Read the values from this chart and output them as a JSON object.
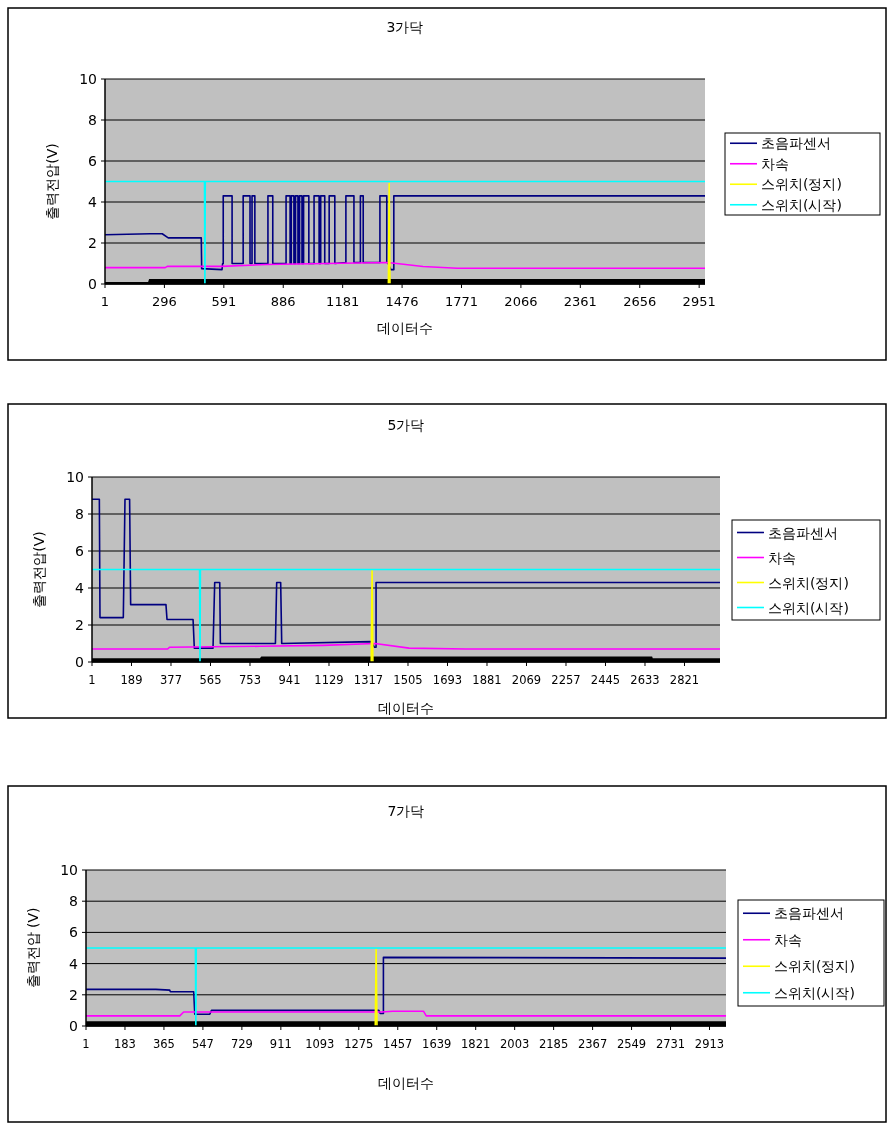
{
  "chart_data": [
    {
      "type": "line",
      "title": "3가닥",
      "xlabel": "데이터수",
      "ylabel": "출력전압(V)",
      "xlim": [
        1,
        2980
      ],
      "ylim": [
        0,
        10
      ],
      "xticks": [
        1,
        296,
        591,
        886,
        1181,
        1476,
        1771,
        2066,
        2361,
        2656,
        2951
      ],
      "yticks": [
        0,
        2,
        4,
        6,
        8,
        10
      ],
      "grid": "y",
      "legend": "right",
      "series": [
        {
          "type": "area",
          "color": "#000000",
          "x": [
            1,
            215,
            220,
            2980
          ],
          "values": [
            0.1,
            0.1,
            0.25,
            0.25
          ]
        },
        {
          "name": "초음파센서",
          "color": "#000080",
          "x": [
            1,
            225,
            285,
            315,
            479,
            481,
            582,
            585,
            588,
            588,
            632,
            632,
            687,
            687,
            721,
            721,
            731,
            731,
            745,
            745,
            810,
            810,
            834,
            834,
            900,
            900,
            920,
            920,
            926,
            926,
            939,
            939,
            947,
            947,
            959,
            959,
            967,
            967,
            979,
            979,
            987,
            987,
            1013,
            1013,
            1039,
            1039,
            1064,
            1064,
            1072,
            1072,
            1092,
            1092,
            1114,
            1114,
            1142,
            1142,
            1197,
            1197,
            1237,
            1237,
            1269,
            1269,
            1283,
            1283,
            1366,
            1366,
            1400,
            1400,
            1405,
            1420,
            1435,
            1435,
            2980
          ],
          "values": [
            2.4,
            2.45,
            2.45,
            2.25,
            2.25,
            0.75,
            0.7,
            1.0,
            1.0,
            4.3,
            4.3,
            1.0,
            1.0,
            4.3,
            4.3,
            1.0,
            1.0,
            4.3,
            4.3,
            1.0,
            1.0,
            4.3,
            4.3,
            1.0,
            1.0,
            4.3,
            4.3,
            1.0,
            1.0,
            4.3,
            4.3,
            1.0,
            1.0,
            4.3,
            4.3,
            1.0,
            1.0,
            4.3,
            4.3,
            1.0,
            1.0,
            4.3,
            4.3,
            1.0,
            1.0,
            4.3,
            4.3,
            1.0,
            1.0,
            4.3,
            4.3,
            1.0,
            1.0,
            4.3,
            4.3,
            1.0,
            1.05,
            4.3,
            4.3,
            1.05,
            1.05,
            4.3,
            4.3,
            1.05,
            1.05,
            4.3,
            4.3,
            1.05,
            1.05,
            0.7,
            0.7,
            4.3,
            4.3
          ]
        },
        {
          "name": "차속",
          "color": "#ff00ff",
          "x": [
            1,
            300,
            310,
            580,
            800,
            1100,
            1400,
            1450,
            1580,
            1750,
            2980
          ],
          "values": [
            0.8,
            0.8,
            0.86,
            0.86,
            0.95,
            1.0,
            1.05,
            1.0,
            0.85,
            0.77,
            0.77
          ]
        },
        {
          "name": "스위치(정지)",
          "color": "#ffff00",
          "x": [
            1408,
            1412,
            1416
          ],
          "values": [
            0,
            4.9,
            0
          ]
        },
        {
          "name": "스위치(시작)",
          "color": "#00ffff",
          "x": [
            1,
            495,
            497,
            499,
            2980
          ],
          "values": [
            5,
            5,
            0,
            5,
            5
          ]
        }
      ]
    },
    {
      "type": "line",
      "title": "5가닥",
      "xlabel": "데이터수",
      "ylabel": "출력전압(V)",
      "xlim": [
        1,
        2990
      ],
      "ylim": [
        0,
        10
      ],
      "xticks": [
        1,
        189,
        377,
        565,
        753,
        941,
        1129,
        1317,
        1505,
        1693,
        1881,
        2069,
        2257,
        2445,
        2633,
        2821
      ],
      "yticks": [
        0,
        2,
        4,
        6,
        8,
        10
      ],
      "grid": "y",
      "legend": "right",
      "series": [
        {
          "type": "area",
          "color": "#000000",
          "x": [
            1,
            800,
            807,
            2667,
            2670,
            2990
          ],
          "values": [
            0.2,
            0.2,
            0.3,
            0.3,
            0.2,
            0.2
          ]
        },
        {
          "name": "초음파센서",
          "color": "#000080",
          "x": [
            1,
            36,
            39,
            150,
            158,
            180,
            185,
            353,
            358,
            482,
            488,
            577,
            585,
            609,
            612,
            874,
            880,
            899,
            904,
            1330,
            1345,
            1353,
            1353,
            2990
          ],
          "values": [
            8.8,
            8.8,
            2.4,
            2.4,
            8.8,
            8.8,
            3.1,
            3.1,
            2.3,
            2.3,
            0.75,
            0.75,
            4.3,
            4.3,
            1.0,
            1.0,
            4.3,
            4.3,
            1.0,
            1.1,
            0.8,
            0.8,
            4.3,
            4.3
          ]
        },
        {
          "name": "차속",
          "color": "#ff00ff",
          "x": [
            1,
            361,
            370,
            800,
            1100,
            1348,
            1510,
            1780,
            2990
          ],
          "values": [
            0.7,
            0.7,
            0.8,
            0.85,
            0.9,
            1.0,
            0.75,
            0.7,
            0.7
          ]
        },
        {
          "name": "스위치(정지)",
          "color": "#ffff00",
          "x": [
            1330,
            1334,
            1338
          ],
          "values": [
            0,
            5,
            0
          ]
        },
        {
          "name": "스위치(시작)",
          "color": "#00ffff",
          "x": [
            1,
            513,
            515,
            517,
            2990
          ],
          "values": [
            5,
            5,
            0,
            5,
            5
          ]
        }
      ]
    },
    {
      "type": "line",
      "title": "7가닥",
      "xlabel": "데이터수",
      "ylabel": "출력전압 (V)",
      "xlim": [
        1,
        2990
      ],
      "ylim": [
        0,
        10
      ],
      "xticks": [
        1,
        183,
        365,
        547,
        729,
        911,
        1093,
        1275,
        1457,
        1639,
        1821,
        2003,
        2185,
        2367,
        2549,
        2731,
        2913
      ],
      "yticks": [
        0,
        2,
        4,
        6,
        8,
        10
      ],
      "grid": "y",
      "legend": "right",
      "series": [
        {
          "type": "area",
          "color": "#000000",
          "x": [
            1,
            2990
          ],
          "values": [
            0.3,
            0.3
          ]
        },
        {
          "name": "초음파센서",
          "color": "#000080",
          "x": [
            1,
            327,
            392,
            395,
            504,
            509,
            579,
            587,
            1369,
            1375,
            1390,
            1390,
            2990
          ],
          "values": [
            2.35,
            2.35,
            2.3,
            2.2,
            2.2,
            0.75,
            0.75,
            1.0,
            1.0,
            0.8,
            0.8,
            4.4,
            4.35
          ]
        },
        {
          "name": "차속",
          "color": "#ff00ff",
          "x": [
            1,
            439,
            457,
            1380,
            1434,
            1577,
            1590,
            2990
          ],
          "values": [
            0.65,
            0.65,
            0.9,
            0.9,
            0.95,
            0.95,
            0.65,
            0.65
          ]
        },
        {
          "name": "스위치(정지)",
          "color": "#ffff00",
          "x": [
            1352,
            1356,
            1360
          ],
          "values": [
            0,
            4.9,
            0
          ]
        },
        {
          "name": "스위치(시작)",
          "color": "#00ffff",
          "x": [
            1,
            512,
            514,
            516,
            2990
          ],
          "values": [
            5,
            5,
            0,
            5,
            5
          ]
        }
      ]
    }
  ]
}
